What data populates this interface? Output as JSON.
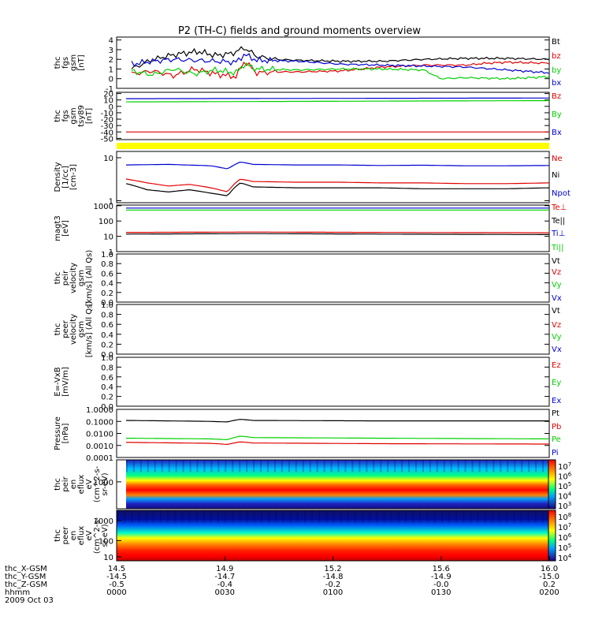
{
  "title": "P2 (TH-C) fields and ground moments overview",
  "colors": {
    "black": "#000000",
    "red": "#e00000",
    "green": "#00d000",
    "blue": "#0000d0",
    "yellow": "#ffff00"
  },
  "chart_data": [
    {
      "type": "line",
      "panel": "fgs-gsm",
      "ylabel_lines": [
        "thc",
        "fgs",
        "gsm",
        "[nT]"
      ],
      "yticks": [
        "4",
        "3",
        "2",
        "1",
        "0",
        "-1"
      ],
      "ylim": [
        -1,
        4.3
      ],
      "series": [
        {
          "name": "Bt",
          "color": "black",
          "x": [
            0.0,
            0.04,
            0.08,
            0.12,
            0.16,
            0.2,
            0.24,
            0.27,
            0.3,
            0.34,
            0.4,
            0.5,
            0.6,
            0.7,
            0.8,
            0.9,
            1.0
          ],
          "y": [
            1.0,
            1.8,
            2.3,
            2.6,
            2.8,
            2.4,
            2.6,
            3.2,
            2.3,
            2.0,
            1.9,
            1.8,
            1.8,
            2.0,
            2.1,
            2.1,
            2.0
          ]
        },
        {
          "name": "bz",
          "color": "red",
          "x": [
            0.0,
            0.05,
            0.1,
            0.15,
            0.2,
            0.25,
            0.27,
            0.3,
            0.35,
            0.4,
            0.5,
            0.6,
            0.7,
            0.8,
            0.85,
            0.9,
            1.0
          ],
          "y": [
            0.5,
            0.8,
            0.3,
            1.0,
            0.5,
            0.2,
            1.8,
            0.6,
            0.7,
            0.7,
            0.8,
            1.2,
            1.4,
            1.4,
            1.6,
            1.7,
            1.6
          ]
        },
        {
          "name": "by",
          "color": "green",
          "x": [
            0.0,
            0.05,
            0.1,
            0.15,
            0.2,
            0.25,
            0.27,
            0.3,
            0.4,
            0.5,
            0.6,
            0.7,
            0.74,
            0.8,
            0.9,
            1.0
          ],
          "y": [
            0.8,
            0.4,
            1.0,
            0.5,
            0.9,
            0.6,
            1.5,
            1.0,
            0.9,
            1.0,
            1.0,
            0.9,
            0.0,
            0.1,
            0.0,
            0.2
          ]
        },
        {
          "name": "bx",
          "color": "blue",
          "x": [
            0.0,
            0.05,
            0.1,
            0.15,
            0.2,
            0.25,
            0.27,
            0.3,
            0.4,
            0.5,
            0.6,
            0.7,
            0.8,
            0.9,
            1.0
          ],
          "y": [
            1.5,
            1.8,
            2.0,
            1.9,
            1.8,
            1.7,
            2.5,
            1.9,
            1.8,
            1.5,
            1.4,
            1.3,
            1.2,
            0.9,
            0.6
          ]
        }
      ]
    },
    {
      "type": "line",
      "panel": "fgs-gse",
      "ylabel_lines": [
        "thc",
        "fgs",
        "gsm",
        "tsy89",
        "[nT]"
      ],
      "yticks": [
        "20",
        "10",
        "0",
        "-10",
        "-20",
        "-30",
        "-40",
        "-50"
      ],
      "ylim": [
        -52,
        22
      ],
      "series": [
        {
          "name": "Bz",
          "color": "red",
          "x": [
            0.0,
            1.0
          ],
          "y": [
            -40,
            -40
          ]
        },
        {
          "name": "By",
          "color": "green",
          "x": [
            0.0,
            1.0
          ],
          "y": [
            7,
            9
          ]
        },
        {
          "name": "Bx",
          "color": "blue",
          "x": [
            0.0,
            1.0
          ],
          "y": [
            12,
            13
          ]
        }
      ]
    },
    {
      "type": "bar",
      "panel": "roi-strip",
      "values": [
        1
      ]
    },
    {
      "type": "line",
      "panel": "density",
      "scale": "log",
      "ylabel_lines": [
        "Density",
        "[1/cc]",
        "[cm-3]"
      ],
      "yticks": [
        "10",
        "1"
      ],
      "ylim": [
        0.9,
        14
      ],
      "series": [
        {
          "name": "Ne",
          "color": "red",
          "x": [
            0.0,
            0.05,
            0.1,
            0.15,
            0.2,
            0.24,
            0.27,
            0.3,
            0.4,
            0.5,
            0.6,
            0.7,
            0.8,
            0.9,
            1.0
          ],
          "y": [
            3.2,
            2.6,
            2.2,
            2.4,
            2.0,
            1.6,
            3.2,
            2.8,
            2.7,
            2.7,
            2.6,
            2.6,
            2.5,
            2.5,
            2.6
          ]
        },
        {
          "name": "Ni",
          "color": "black",
          "x": [
            0.0,
            0.05,
            0.1,
            0.15,
            0.2,
            0.24,
            0.27,
            0.3,
            0.4,
            0.5,
            0.6,
            0.7,
            0.8,
            0.9,
            1.0
          ],
          "y": [
            2.5,
            1.8,
            1.6,
            1.8,
            1.5,
            1.3,
            2.6,
            2.1,
            2.0,
            2.0,
            2.0,
            1.9,
            1.9,
            1.9,
            2.0
          ]
        },
        {
          "name": "Npot",
          "color": "blue",
          "x": [
            0.0,
            0.1,
            0.2,
            0.24,
            0.27,
            0.3,
            0.4,
            0.5,
            0.6,
            0.7,
            0.8,
            0.9,
            1.0
          ],
          "y": [
            6.8,
            7.0,
            6.5,
            5.5,
            8.0,
            7.0,
            6.8,
            6.8,
            6.6,
            6.7,
            6.5,
            6.5,
            6.6
          ]
        }
      ]
    },
    {
      "type": "line",
      "panel": "temperature",
      "scale": "log",
      "ylabel_lines": [
        "magt3",
        "[eV]"
      ],
      "yticks": [
        "1000",
        "100",
        "10",
        "1"
      ],
      "ylim": [
        1,
        1100
      ],
      "series": [
        {
          "name": "Te⊥",
          "color": "red",
          "x": [
            0.0,
            0.3,
            0.6,
            1.0
          ],
          "y": [
            18,
            19,
            18,
            17
          ]
        },
        {
          "name": "Te||",
          "color": "black",
          "x": [
            0.0,
            0.3,
            0.6,
            1.0
          ],
          "y": [
            14,
            15,
            14,
            13
          ]
        },
        {
          "name": "Ti⊥",
          "color": "blue",
          "x": [
            0.0,
            1.0
          ],
          "y": [
            700,
            700
          ]
        },
        {
          "name": "Ti||",
          "color": "green",
          "x": [
            0.0,
            1.0
          ],
          "y": [
            520,
            520
          ]
        }
      ]
    },
    {
      "type": "line",
      "panel": "peir-velocity",
      "ylabel_lines": [
        "thc",
        "peir",
        "velocity",
        "gsm",
        "[km/s] (All Qs)"
      ],
      "yticks": [
        "1.0",
        "0.8",
        "0.6",
        "0.4",
        "0.2",
        "0.0"
      ],
      "ylim": [
        0,
        1
      ],
      "series": [
        {
          "name": "Vt",
          "color": "black",
          "x": [],
          "y": []
        },
        {
          "name": "Vz",
          "color": "red",
          "x": [],
          "y": []
        },
        {
          "name": "Vy",
          "color": "green",
          "x": [],
          "y": []
        },
        {
          "name": "Vx",
          "color": "blue",
          "x": [],
          "y": []
        }
      ]
    },
    {
      "type": "line",
      "panel": "peer-velocity",
      "ylabel_lines": [
        "thc",
        "peer",
        "velocity",
        "gsm",
        "[km/s] (All Qs)"
      ],
      "yticks": [
        "1.0",
        "0.8",
        "0.6",
        "0.4",
        "0.2",
        "0.0"
      ],
      "ylim": [
        0,
        1
      ],
      "series": [
        {
          "name": "Vt",
          "color": "black",
          "x": [],
          "y": []
        },
        {
          "name": "Vz",
          "color": "red",
          "x": [],
          "y": []
        },
        {
          "name": "Vy",
          "color": "green",
          "x": [],
          "y": []
        },
        {
          "name": "Vx",
          "color": "blue",
          "x": [],
          "y": []
        }
      ]
    },
    {
      "type": "line",
      "panel": "efield",
      "ylabel_lines": [
        "E=-VxB",
        "[mV/m]"
      ],
      "yticks": [
        "1.0",
        "0.8",
        "0.6",
        "0.4",
        "0.2",
        "0.0"
      ],
      "ylim": [
        0,
        1
      ],
      "series": [
        {
          "name": "Ez",
          "color": "red",
          "x": [],
          "y": []
        },
        {
          "name": "Ey",
          "color": "green",
          "x": [],
          "y": []
        },
        {
          "name": "Ex",
          "color": "blue",
          "x": [],
          "y": []
        }
      ]
    },
    {
      "type": "line",
      "panel": "pressure",
      "scale": "log",
      "ylabel_lines": [
        "Pressure",
        "[nPa]"
      ],
      "yticks": [
        "1.0000",
        "0.1000",
        "0.0100",
        "0.0010",
        "0.0001"
      ],
      "ylim": [
        0.0001,
        1
      ],
      "series": [
        {
          "name": "Pt",
          "color": "black",
          "x": [
            0.0,
            0.2,
            0.24,
            0.27,
            0.3,
            0.6,
            1.0
          ],
          "y": [
            0.12,
            0.1,
            0.09,
            0.15,
            0.12,
            0.11,
            0.11
          ]
        },
        {
          "name": "Pb",
          "color": "red",
          "x": [
            0.0,
            0.2,
            0.24,
            0.27,
            0.3,
            0.6,
            1.0
          ],
          "y": [
            0.0018,
            0.0015,
            0.0012,
            0.002,
            0.0016,
            0.0014,
            0.0013
          ]
        },
        {
          "name": "Pe",
          "color": "green",
          "x": [
            0.0,
            0.2,
            0.24,
            0.27,
            0.3,
            0.6,
            1.0
          ],
          "y": [
            0.004,
            0.0035,
            0.003,
            0.006,
            0.0045,
            0.004,
            0.0035
          ]
        },
        {
          "name": "Pi",
          "color": "blue",
          "x": [],
          "y": []
        }
      ]
    },
    {
      "type": "heatmap",
      "panel": "peir-spectrogram",
      "ylabel_lines": [
        "thc",
        "peir",
        "en",
        "eflux",
        "eV",
        "(cm^2-s-",
        "sr-eV)"
      ],
      "yticks": [
        "1000"
      ],
      "colorbar_ticks": [
        "10^7",
        "10^6",
        "10^5",
        "10^4",
        "10^3"
      ]
    },
    {
      "type": "heatmap",
      "panel": "peer-spectrogram",
      "ylabel_lines": [
        "thc",
        "peer",
        "en",
        "eflux",
        "eV",
        "(cm^2-s-",
        "sr-eV)"
      ],
      "yticks": [
        "1000",
        "100",
        "10"
      ],
      "colorbar_ticks": [
        "10^8",
        "10^7",
        "10^6",
        "10^5",
        "10^4"
      ]
    }
  ],
  "xaxis": {
    "row_labels": [
      "thc_X-GSM",
      "thc_Y-GSM",
      "thc_Z-GSM",
      "hhmm",
      "2009 Oct 03"
    ],
    "columns": [
      [
        "14.5",
        "-14.5",
        "-0.5",
        "0000"
      ],
      [
        "14.9",
        "-14.7",
        "-0.4",
        "0030"
      ],
      [
        "15.2",
        "-14.8",
        "-0.2",
        "0100"
      ],
      [
        "15.6",
        "-14.9",
        "-0.0",
        "0130"
      ],
      [
        "16.0",
        "-15.0",
        "0.2",
        "0200"
      ]
    ]
  }
}
